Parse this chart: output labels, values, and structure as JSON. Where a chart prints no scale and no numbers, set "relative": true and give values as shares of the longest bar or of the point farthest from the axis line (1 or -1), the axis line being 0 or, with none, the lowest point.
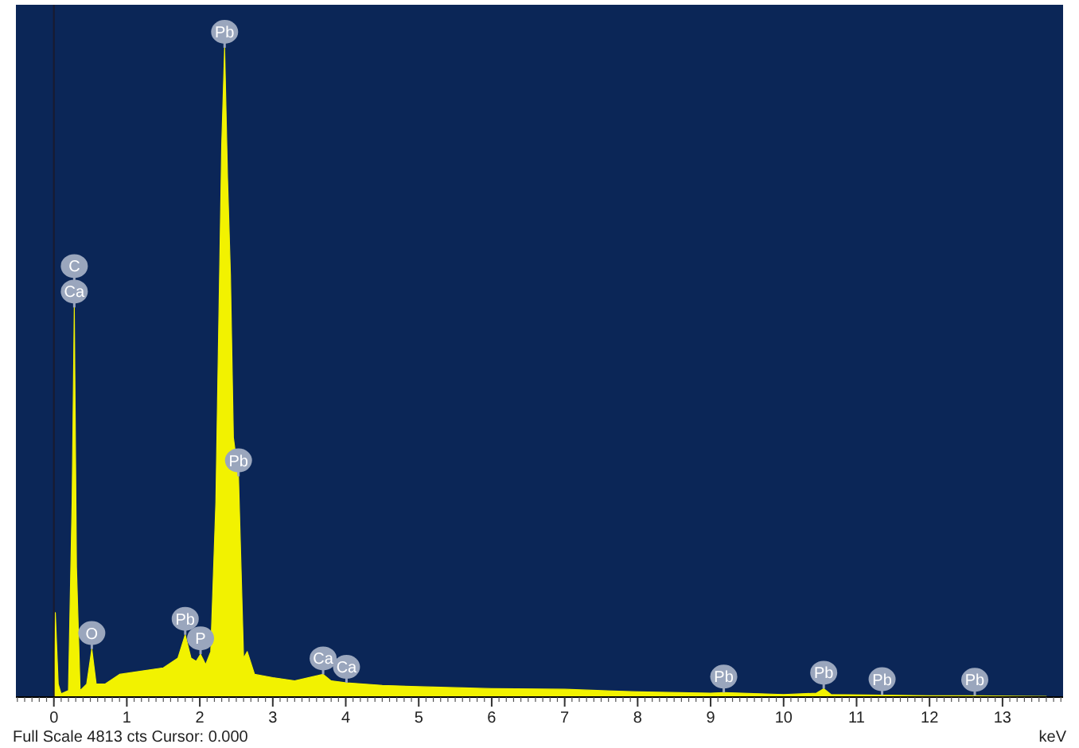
{
  "chart_data": {
    "type": "area",
    "relative": true,
    "xlabel": "keV",
    "xlim": [
      -0.52,
      13.83
    ],
    "xticks": [
      0,
      1,
      2,
      3,
      4,
      5,
      6,
      7,
      8,
      9,
      10,
      11,
      12,
      13
    ],
    "grid": false,
    "series": [
      {
        "color": "#f2f200",
        "x": [
          0,
          0.02,
          0.06,
          0.1,
          0.2,
          0.25,
          0.28,
          0.31,
          0.36,
          0.45,
          0.52,
          0.58,
          0.7,
          0.9,
          1.2,
          1.5,
          1.7,
          1.8,
          1.88,
          1.95,
          2.01,
          2.08,
          2.15,
          2.22,
          2.3,
          2.34,
          2.38,
          2.42,
          2.46,
          2.53,
          2.6,
          2.65,
          2.75,
          3.0,
          3.3,
          3.69,
          3.8,
          4.01,
          4.5,
          5,
          6,
          7,
          8,
          9,
          9.18,
          10,
          10.45,
          10.55,
          10.65,
          11.35,
          12,
          12.62,
          13.6
        ],
        "values": [
          0,
          0.13,
          0.02,
          0.005,
          0.01,
          0.3,
          0.6,
          0.2,
          0.01,
          0.02,
          0.074,
          0.02,
          0.02,
          0.035,
          0.04,
          0.045,
          0.06,
          0.096,
          0.06,
          0.055,
          0.066,
          0.05,
          0.07,
          0.3,
          0.85,
          1,
          0.8,
          0.65,
          0.4,
          0.34,
          0.06,
          0.07,
          0.035,
          0.03,
          0.025,
          0.035,
          0.025,
          0.022,
          0.018,
          0.016,
          0.013,
          0.012,
          0.008,
          0.006,
          0.007,
          0.004,
          0.006,
          0.013,
          0.004,
          0.003,
          0.002,
          0.002,
          0.001
        ]
      }
    ],
    "ref_lines": [
      {
        "axis": "x",
        "value": 0,
        "color": "#1a1a2e"
      }
    ],
    "annotations": [
      {
        "text": "Ca",
        "x": 0.28,
        "y": 0.6
      },
      {
        "text": "C",
        "x": 0.28,
        "y": 0.6
      },
      {
        "text": "O",
        "x": 0.52,
        "y": 0.074
      },
      {
        "text": "Pb",
        "x": 1.8,
        "y": 0.096
      },
      {
        "text": "P",
        "x": 2.01,
        "y": 0.066
      },
      {
        "text": "Pb",
        "x": 2.34,
        "y": 1
      },
      {
        "text": "Pb",
        "x": 2.53,
        "y": 0.34
      },
      {
        "text": "Ca",
        "x": 3.69,
        "y": 0.035
      },
      {
        "text": "Ca",
        "x": 4.01,
        "y": 0.022
      },
      {
        "text": "Pb",
        "x": 9.18,
        "y": 0.007
      },
      {
        "text": "Pb",
        "x": 10.55,
        "y": 0.013
      },
      {
        "text": "Pb",
        "x": 11.35,
        "y": 0.003
      },
      {
        "text": "Pb",
        "x": 12.62,
        "y": 0.002
      },
      "Full Scale 4813 cts Cursor: 0.000"
    ]
  }
}
